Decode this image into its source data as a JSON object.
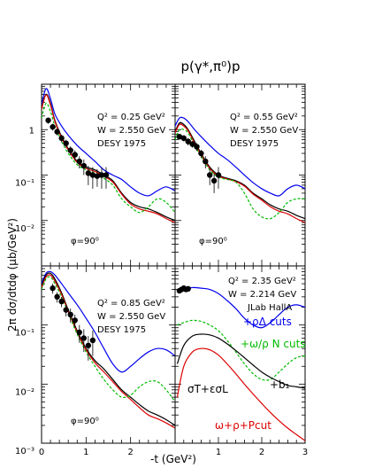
{
  "figure": {
    "title": "p(γ*,π⁰)p",
    "ylabel": "2π dσ/dtdφ   (μb/GeV²)",
    "xlabel": "-t  (GeV²)"
  },
  "chart_data": [
    {
      "type": "scatter",
      "panel": "top-left",
      "annotations": [
        "Q² = 0.25 GeV²",
        "W = 2.550 GeV",
        "DESY 1975",
        "φ=90⁰"
      ],
      "xlim": [
        0,
        3
      ],
      "yscale": "log",
      "ylim": [
        0.001,
        10
      ],
      "x_ticks": [],
      "y_ticks": [
        "1",
        "10⁻¹",
        "10⁻²"
      ],
      "points": [
        {
          "x": 0.15,
          "y": 1.6,
          "err": 0.25
        },
        {
          "x": 0.25,
          "y": 1.15,
          "err": 0.2
        },
        {
          "x": 0.35,
          "y": 0.9,
          "err": 0.15
        },
        {
          "x": 0.45,
          "y": 0.65,
          "err": 0.12
        },
        {
          "x": 0.55,
          "y": 0.5,
          "err": 0.1
        },
        {
          "x": 0.65,
          "y": 0.35,
          "err": 0.08
        },
        {
          "x": 0.75,
          "y": 0.28,
          "err": 0.07
        },
        {
          "x": 0.85,
          "y": 0.2,
          "err": 0.06
        },
        {
          "x": 0.95,
          "y": 0.16,
          "err": 0.06
        },
        {
          "x": 1.05,
          "y": 0.11,
          "err": 0.05
        },
        {
          "x": 1.15,
          "y": 0.1,
          "err": 0.05
        },
        {
          "x": 1.25,
          "y": 0.095,
          "err": 0.04
        },
        {
          "x": 1.35,
          "y": 0.1,
          "err": 0.05
        },
        {
          "x": 1.45,
          "y": 0.1,
          "err": 0.05
        }
      ],
      "series": [
        {
          "color": "#0000ee",
          "dash": false,
          "x": [
            0,
            0.1,
            0.2,
            0.3,
            0.45,
            0.6,
            0.8,
            1.0,
            1.2,
            1.4,
            1.6,
            1.8,
            2.0,
            2.2,
            2.4,
            2.6,
            2.8,
            3.0
          ],
          "y": [
            3.5,
            8.0,
            4.8,
            2.2,
            1.2,
            0.75,
            0.45,
            0.3,
            0.2,
            0.13,
            0.1,
            0.08,
            0.055,
            0.04,
            0.035,
            0.045,
            0.055,
            0.045
          ]
        },
        {
          "color": "#000000",
          "dash": false,
          "x": [
            0,
            0.1,
            0.2,
            0.3,
            0.45,
            0.6,
            0.8,
            1.0,
            1.2,
            1.4,
            1.6,
            1.8,
            2.0,
            2.2,
            2.4,
            2.6,
            2.8,
            3.0
          ],
          "y": [
            3.0,
            6.0,
            3.8,
            1.6,
            0.7,
            0.38,
            0.2,
            0.15,
            0.13,
            0.1,
            0.075,
            0.04,
            0.025,
            0.02,
            0.018,
            0.015,
            0.012,
            0.01
          ]
        },
        {
          "color": "#dd0000",
          "dash": false,
          "x": [
            0,
            0.1,
            0.2,
            0.3,
            0.45,
            0.6,
            0.8,
            1.0,
            1.2,
            1.4,
            1.6,
            1.8,
            2.0,
            2.2,
            2.4,
            2.6,
            2.8,
            3.0
          ],
          "y": [
            2.8,
            5.8,
            3.5,
            1.5,
            0.65,
            0.36,
            0.19,
            0.14,
            0.12,
            0.095,
            0.07,
            0.038,
            0.023,
            0.018,
            0.016,
            0.014,
            0.011,
            0.009
          ]
        },
        {
          "color": "#00bb00",
          "dash": true,
          "x": [
            0,
            0.1,
            0.2,
            0.3,
            0.45,
            0.6,
            0.8,
            1.0,
            1.2,
            1.4,
            1.6,
            1.8,
            2.0,
            2.2,
            2.4,
            2.6,
            2.8,
            3.0
          ],
          "y": [
            1.8,
            3.8,
            2.5,
            1.2,
            0.55,
            0.3,
            0.17,
            0.13,
            0.11,
            0.085,
            0.06,
            0.03,
            0.02,
            0.015,
            0.02,
            0.03,
            0.025,
            0.015
          ]
        }
      ]
    },
    {
      "type": "scatter",
      "panel": "top-right",
      "annotations": [
        "Q² = 0.55 GeV²",
        "W = 2.550 GeV",
        "DESY 1975",
        "φ=90⁰"
      ],
      "xlim": [
        0,
        3
      ],
      "yscale": "log",
      "ylim": [
        0.001,
        10
      ],
      "x_ticks": [],
      "y_ticks": [],
      "points": [
        {
          "x": 0.1,
          "y": 0.7,
          "err": 0.1
        },
        {
          "x": 0.2,
          "y": 0.65,
          "err": 0.1
        },
        {
          "x": 0.3,
          "y": 0.55,
          "err": 0.1
        },
        {
          "x": 0.4,
          "y": 0.48,
          "err": 0.08
        },
        {
          "x": 0.5,
          "y": 0.42,
          "err": 0.08
        },
        {
          "x": 0.6,
          "y": 0.3,
          "err": 0.06
        },
        {
          "x": 0.7,
          "y": 0.2,
          "err": 0.06
        },
        {
          "x": 0.8,
          "y": 0.1,
          "err": 0.04
        },
        {
          "x": 0.9,
          "y": 0.075,
          "err": 0.035
        },
        {
          "x": 1.0,
          "y": 0.1,
          "err": 0.05
        }
      ],
      "series": [
        {
          "color": "#0000ee",
          "dash": false,
          "x": [
            0,
            0.1,
            0.2,
            0.3,
            0.45,
            0.6,
            0.8,
            1.0,
            1.2,
            1.4,
            1.6,
            1.8,
            2.0,
            2.2,
            2.4,
            2.6,
            2.8,
            3.0
          ],
          "y": [
            1.2,
            1.8,
            1.8,
            1.5,
            1.0,
            0.7,
            0.45,
            0.3,
            0.22,
            0.15,
            0.1,
            0.068,
            0.05,
            0.04,
            0.035,
            0.05,
            0.06,
            0.05
          ]
        },
        {
          "color": "#000000",
          "dash": false,
          "x": [
            0,
            0.1,
            0.2,
            0.3,
            0.45,
            0.6,
            0.8,
            1.0,
            1.2,
            1.4,
            1.6,
            1.8,
            2.0,
            2.2,
            2.4,
            2.6,
            2.8,
            3.0
          ],
          "y": [
            0.9,
            1.4,
            1.3,
            1.0,
            0.55,
            0.3,
            0.15,
            0.1,
            0.085,
            0.075,
            0.06,
            0.04,
            0.03,
            0.022,
            0.018,
            0.016,
            0.013,
            0.011
          ]
        },
        {
          "color": "#dd0000",
          "dash": false,
          "x": [
            0,
            0.1,
            0.2,
            0.3,
            0.45,
            0.6,
            0.8,
            1.0,
            1.2,
            1.4,
            1.6,
            1.8,
            2.0,
            2.2,
            2.4,
            2.6,
            2.8,
            3.0
          ],
          "y": [
            0.85,
            1.3,
            1.2,
            0.95,
            0.5,
            0.28,
            0.14,
            0.095,
            0.082,
            0.072,
            0.057,
            0.038,
            0.028,
            0.02,
            0.016,
            0.014,
            0.011,
            0.009
          ]
        },
        {
          "color": "#00bb00",
          "dash": true,
          "x": [
            0,
            0.1,
            0.2,
            0.3,
            0.45,
            0.6,
            0.8,
            1.0,
            1.2,
            1.4,
            1.6,
            1.8,
            2.0,
            2.2,
            2.4,
            2.6,
            2.8,
            3.0
          ],
          "y": [
            0.6,
            1.0,
            1.0,
            0.85,
            0.45,
            0.26,
            0.13,
            0.09,
            0.08,
            0.07,
            0.04,
            0.018,
            0.012,
            0.011,
            0.015,
            0.025,
            0.03,
            0.03
          ]
        }
      ]
    },
    {
      "type": "scatter",
      "panel": "bottom-left",
      "annotations": [
        "Q² = 0.85 GeV²",
        "W = 2.550 GeV",
        "DESY 1975",
        "φ=90⁰"
      ],
      "xlim": [
        0,
        3
      ],
      "yscale": "log",
      "ylim": [
        0.001,
        1
      ],
      "x_ticks": [
        "0",
        "1",
        "2"
      ],
      "y_ticks": [
        "10⁻¹",
        "10⁻²",
        "10⁻³"
      ],
      "points": [
        {
          "x": 0.25,
          "y": 0.42,
          "err": 0.08
        },
        {
          "x": 0.35,
          "y": 0.3,
          "err": 0.06
        },
        {
          "x": 0.45,
          "y": 0.25,
          "err": 0.05
        },
        {
          "x": 0.55,
          "y": 0.18,
          "err": 0.04
        },
        {
          "x": 0.65,
          "y": 0.15,
          "err": 0.04
        },
        {
          "x": 0.75,
          "y": 0.12,
          "err": 0.03
        },
        {
          "x": 0.85,
          "y": 0.075,
          "err": 0.025
        },
        {
          "x": 0.95,
          "y": 0.06,
          "err": 0.025
        },
        {
          "x": 1.05,
          "y": 0.045,
          "err": 0.02
        },
        {
          "x": 1.15,
          "y": 0.055,
          "err": 0.025
        }
      ],
      "series": [
        {
          "color": "#0000ee",
          "dash": false,
          "x": [
            0,
            0.1,
            0.2,
            0.3,
            0.45,
            0.6,
            0.8,
            1.0,
            1.2,
            1.4,
            1.6,
            1.8,
            2.0,
            2.2,
            2.4,
            2.6,
            2.8,
            3.0
          ],
          "y": [
            0.5,
            0.75,
            0.8,
            0.7,
            0.5,
            0.35,
            0.22,
            0.13,
            0.075,
            0.04,
            0.022,
            0.016,
            0.02,
            0.027,
            0.035,
            0.04,
            0.038,
            0.03
          ]
        },
        {
          "color": "#000000",
          "dash": false,
          "x": [
            0,
            0.1,
            0.2,
            0.3,
            0.45,
            0.6,
            0.8,
            1.0,
            1.2,
            1.4,
            1.6,
            1.8,
            2.0,
            2.2,
            2.4,
            2.6,
            2.8,
            3.0
          ],
          "y": [
            0.45,
            0.7,
            0.75,
            0.6,
            0.35,
            0.18,
            0.08,
            0.04,
            0.025,
            0.018,
            0.012,
            0.008,
            0.006,
            0.0045,
            0.0035,
            0.003,
            0.0025,
            0.002
          ]
        },
        {
          "color": "#dd0000",
          "dash": false,
          "x": [
            0,
            0.1,
            0.2,
            0.3,
            0.45,
            0.6,
            0.8,
            1.0,
            1.2,
            1.4,
            1.6,
            1.8,
            2.0,
            2.2,
            2.4,
            2.6,
            2.8,
            3.0
          ],
          "y": [
            0.42,
            0.65,
            0.7,
            0.55,
            0.33,
            0.17,
            0.075,
            0.038,
            0.023,
            0.016,
            0.011,
            0.0075,
            0.0055,
            0.004,
            0.003,
            0.0026,
            0.0022,
            0.0018
          ]
        },
        {
          "color": "#00bb00",
          "dash": true,
          "x": [
            0,
            0.1,
            0.2,
            0.3,
            0.45,
            0.6,
            0.8,
            1.0,
            1.2,
            1.4,
            1.6,
            1.8,
            2.0,
            2.2,
            2.4,
            2.6,
            2.8,
            3.0
          ],
          "y": [
            0.4,
            0.6,
            0.65,
            0.5,
            0.3,
            0.16,
            0.07,
            0.035,
            0.02,
            0.012,
            0.008,
            0.006,
            0.0065,
            0.009,
            0.011,
            0.011,
            0.008,
            0.005
          ]
        }
      ]
    },
    {
      "type": "scatter",
      "panel": "bottom-right",
      "annotations": [
        "Q² = 2.35 GeV²",
        "W = 2.214 GeV",
        "JLab HallA"
      ],
      "xlim": [
        0,
        3
      ],
      "yscale": "log",
      "ylim": [
        0.001,
        1
      ],
      "x_ticks": [
        "1",
        "2",
        "3"
      ],
      "y_ticks": [],
      "points": [
        {
          "x": 0.1,
          "y": 0.38,
          "err": 0.03
        },
        {
          "x": 0.15,
          "y": 0.4,
          "err": 0.03
        },
        {
          "x": 0.2,
          "y": 0.42,
          "err": 0.03
        },
        {
          "x": 0.25,
          "y": 0.4,
          "err": 0.03
        },
        {
          "x": 0.3,
          "y": 0.41,
          "err": 0.03
        }
      ],
      "series": [
        {
          "name": "+ρΔ cuts",
          "color": "#0000ee",
          "dash": false,
          "x": [
            0.05,
            0.2,
            0.4,
            0.6,
            0.8,
            1.0,
            1.2,
            1.4,
            1.6,
            1.8,
            2.0,
            2.2,
            2.4,
            2.6,
            2.8,
            3.0
          ],
          "y": [
            0.36,
            0.4,
            0.43,
            0.42,
            0.4,
            0.34,
            0.26,
            0.19,
            0.13,
            0.1,
            0.09,
            0.11,
            0.15,
            0.2,
            0.22,
            0.2
          ]
        },
        {
          "name": "+ω/ρ N cuts",
          "color": "#00bb00",
          "dash": true,
          "x": [
            0.05,
            0.2,
            0.4,
            0.6,
            0.8,
            1.0,
            1.2,
            1.4,
            1.6,
            1.8,
            2.0,
            2.2,
            2.4,
            2.6,
            2.8,
            3.0
          ],
          "y": [
            0.1,
            0.11,
            0.12,
            0.115,
            0.1,
            0.08,
            0.055,
            0.035,
            0.022,
            0.015,
            0.012,
            0.012,
            0.016,
            0.022,
            0.028,
            0.03
          ]
        },
        {
          "name": "+b₁",
          "color": "#000000",
          "dash": false,
          "x": [
            0.05,
            0.2,
            0.4,
            0.6,
            0.8,
            1.0,
            1.2,
            1.4,
            1.6,
            1.8,
            2.0,
            2.2,
            2.4,
            2.6,
            2.8,
            3.0
          ],
          "y": [
            0.022,
            0.045,
            0.065,
            0.07,
            0.068,
            0.06,
            0.048,
            0.037,
            0.028,
            0.021,
            0.016,
            0.013,
            0.011,
            0.0095,
            0.009,
            0.0085
          ]
        },
        {
          "name": "ω+ρ+Pcut",
          "color": "#dd0000",
          "dash": false,
          "x": [
            0.05,
            0.2,
            0.4,
            0.6,
            0.8,
            1.0,
            1.2,
            1.4,
            1.6,
            1.8,
            2.0,
            2.2,
            2.4,
            2.6,
            2.8,
            3.0
          ],
          "y": [
            0.006,
            0.02,
            0.035,
            0.04,
            0.038,
            0.031,
            0.022,
            0.015,
            0.01,
            0.0068,
            0.0047,
            0.0033,
            0.0024,
            0.0018,
            0.0014,
            0.0011
          ]
        }
      ],
      "legend": [
        {
          "text": "+ρΔ cuts",
          "color": "#0000ee"
        },
        {
          "text": "+ω/ρ N cuts",
          "color": "#00bb00"
        },
        {
          "text": "+b₁",
          "color": "#000000"
        },
        {
          "text": "σT+εσL",
          "color": "#000000"
        },
        {
          "text": "ω+ρ+Pcut",
          "color": "#dd0000"
        }
      ]
    }
  ]
}
